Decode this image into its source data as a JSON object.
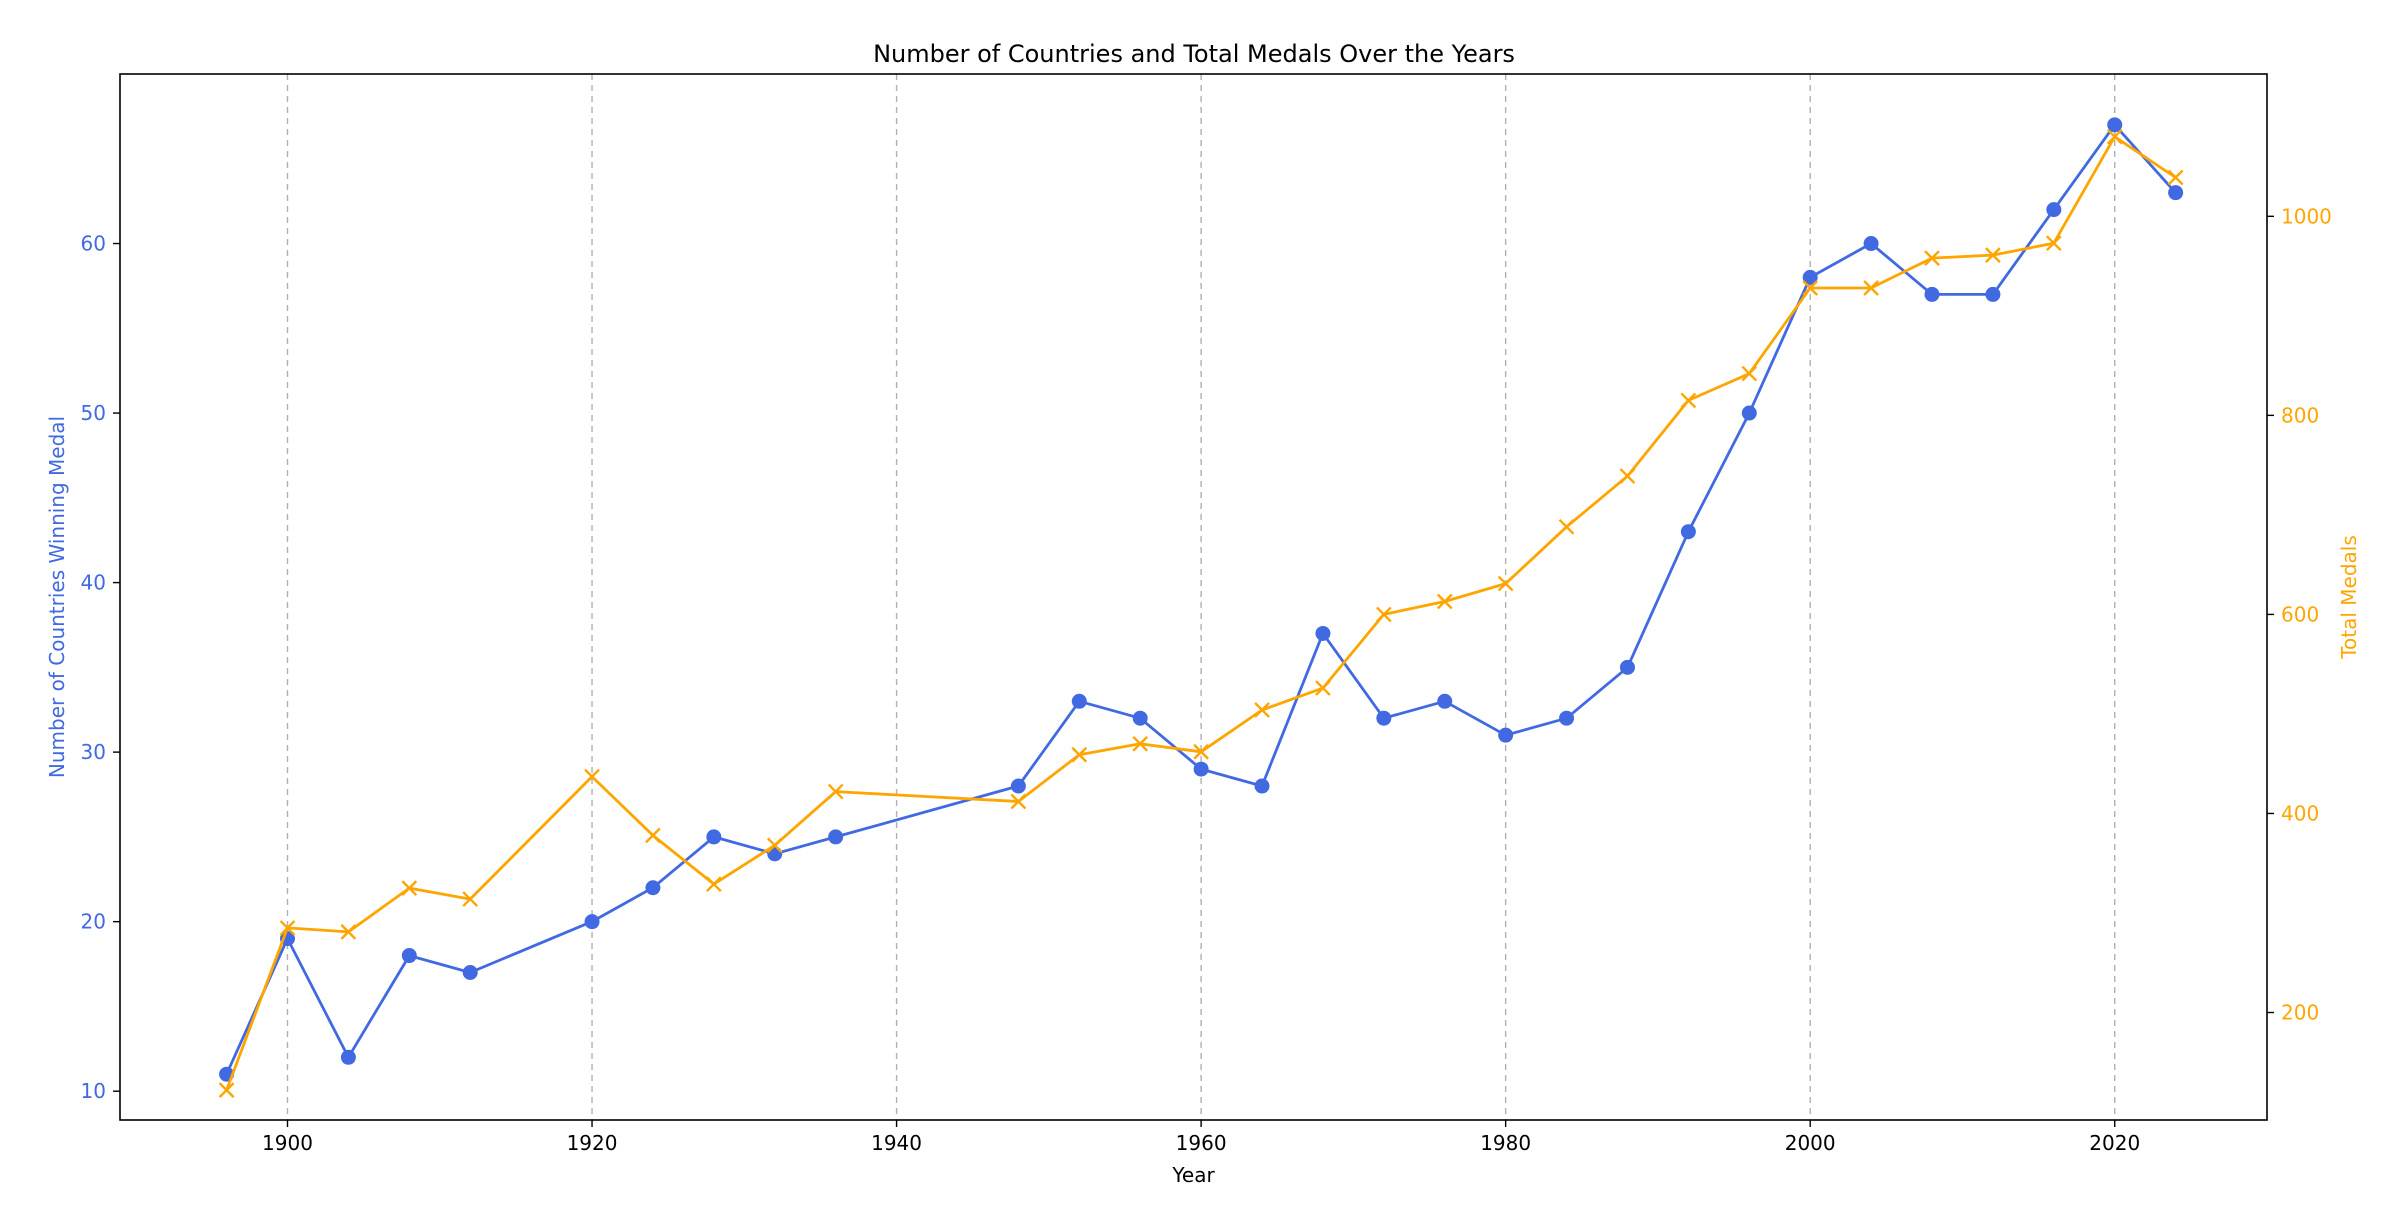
{
  "chart_data": {
    "type": "line",
    "title": "Number of Countries and Total Medals Over the Years",
    "xlabel": "Year",
    "ylabel_left": "Number of Countries Winning Medal",
    "ylabel_right": "Total Medals",
    "x": [
      1896,
      1900,
      1904,
      1908,
      1912,
      1920,
      1924,
      1928,
      1932,
      1936,
      1948,
      1952,
      1956,
      1960,
      1964,
      1968,
      1972,
      1976,
      1980,
      1984,
      1988,
      1992,
      1996,
      2000,
      2004,
      2008,
      2012,
      2016,
      2020,
      2024
    ],
    "xlim": [
      1889,
      2030
    ],
    "xticks": [
      1900,
      1920,
      1940,
      1960,
      1980,
      2000,
      2020
    ],
    "series": [
      {
        "axis": "left",
        "color": "#4169e1",
        "marker": "circle",
        "values": [
          11,
          19,
          12,
          18,
          17,
          20,
          22,
          25,
          24,
          25,
          28,
          33,
          32,
          29,
          28,
          37,
          32,
          33,
          31,
          32,
          35,
          43,
          50,
          58,
          60,
          57,
          57,
          62,
          67,
          63
        ]
      },
      {
        "axis": "right",
        "color": "#ffa500",
        "marker": "x",
        "values": [
          122,
          285,
          281,
          325,
          314,
          437,
          378,
          329,
          368,
          422,
          412,
          459,
          470,
          462,
          504,
          526,
          600,
          613,
          631,
          688,
          739,
          815,
          842,
          928,
          928,
          958,
          961,
          973,
          1080,
          1039
        ]
      }
    ],
    "ylim_left": [
      8.3,
      70
    ],
    "yticks_left": [
      10,
      20,
      30,
      40,
      50,
      60
    ],
    "ylim_right": [
      92,
      1143
    ],
    "yticks_right": [
      200,
      400,
      600,
      800,
      1000
    ],
    "grid": "x-dashed",
    "left_axis_color": "#4169e1",
    "right_axis_color": "#ffa500"
  }
}
